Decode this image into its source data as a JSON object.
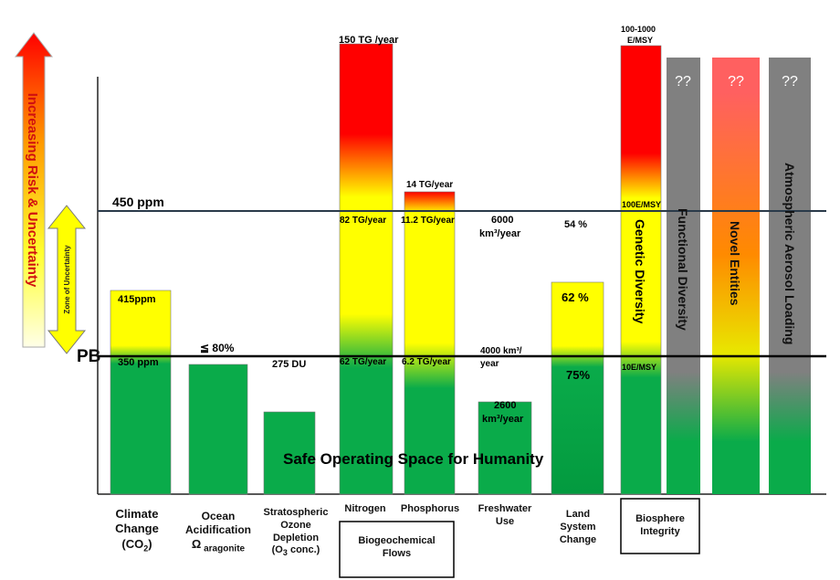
{
  "chart_data": {
    "type": "bar",
    "risk_axis_label": "Increasing Risk & Uncertainty",
    "zone_label": "Zone of Uncertainty",
    "pb_label": "PB",
    "line_450_label": "450 ppm",
    "safe_space_label": "Safe Operating Space for Humanity",
    "bars": {
      "climate": {
        "top": "415ppm",
        "pb": "350 ppm"
      },
      "ocean": {
        "above": "≦ 80%"
      },
      "ozone": {
        "above": "275 DU"
      },
      "nitrogen": {
        "top": "150 TG /year",
        "upper": "82 TG/year",
        "pb": "62 TG/year"
      },
      "phosphorus": {
        "top": "14 TG/year",
        "upper": "11.2 TG/year",
        "pb": "6.2 TG/year"
      },
      "freshwater": {
        "upper_1": "6000",
        "upper_2": "km³/year",
        "pb_1": "4000 km³/",
        "pb_2": "year",
        "inside_1": "2600",
        "inside_2": "km³/year"
      },
      "land": {
        "upper": "54 %",
        "top": "62 %",
        "inside": "75%"
      },
      "genetic": {
        "top_1": "100-1000",
        "top_2": "E/MSY",
        "upper": "100E/MSY",
        "pb": "10E/MSY",
        "vertical": "Genetic Diversity"
      },
      "functional": {
        "q": "??",
        "vertical": "Functional Diversity"
      },
      "novel": {
        "q": "??",
        "vertical": "Novel Entities"
      },
      "aerosol": {
        "q": "??",
        "vertical": "Atmospheric Aerosol Loading"
      }
    },
    "categories": {
      "climate_1": "Climate",
      "climate_2": "Change",
      "climate_3a": "(CO",
      "climate_3b": "2",
      "climate_3c": ")",
      "ocean_1": "Ocean",
      "ocean_2": "Acidification",
      "ocean_3a": "Ω",
      "ocean_3b": " aragonite",
      "ozone_1": "Stratospheric",
      "ozone_2": "Ozone",
      "ozone_3": "Depletion",
      "ozone_4a": "(O",
      "ozone_4b": "3",
      "ozone_4c": " conc.)",
      "nitrogen": "Nitrogen",
      "phosphorus": "Phosphorus",
      "freshwater_1": "Freshwater",
      "freshwater_2": "Use",
      "land_1": "Land",
      "land_2": "System",
      "land_3": "Change",
      "biogeo_1": "Biogeochemical",
      "biogeo_2": "Flows",
      "biosphere_1": "Biosphere",
      "biosphere_2": "Integrity"
    },
    "colors": {
      "green": "#0aab4a",
      "yellow": "#ffff00",
      "red": "#ff0000",
      "gray": "#808080",
      "salmon": "#ff6060",
      "orange": "#ff8a00"
    }
  }
}
